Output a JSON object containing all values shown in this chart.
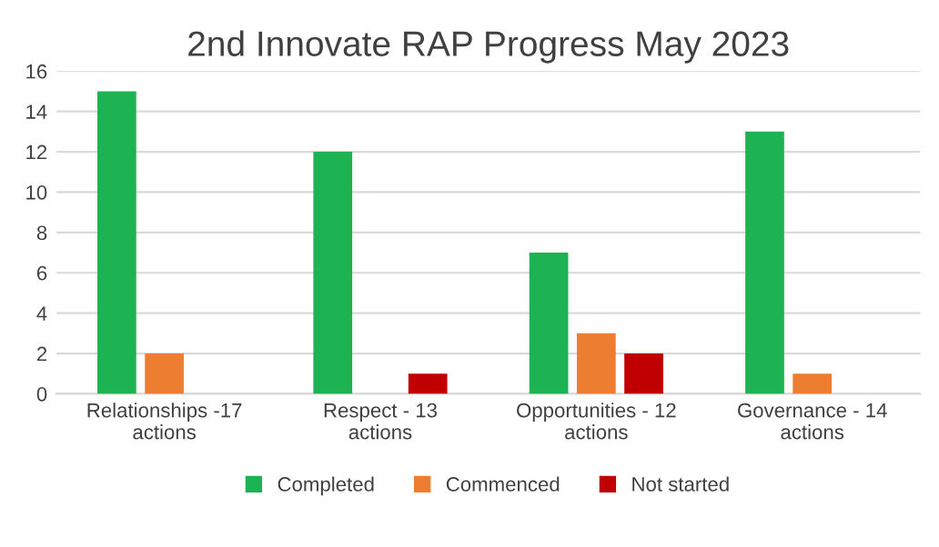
{
  "chart_data": {
    "type": "bar",
    "title": "2nd Innovate RAP Progress May 2023",
    "categories": [
      "Relationships -17 actions",
      "Respect - 13 actions",
      "Opportunities - 12 actions",
      "Governance - 14 actions"
    ],
    "series": [
      {
        "name": "Completed",
        "color": "#1db353",
        "values": [
          15,
          12,
          7,
          13
        ]
      },
      {
        "name": "Commenced",
        "color": "#ed7d31",
        "values": [
          2,
          0,
          3,
          1
        ]
      },
      {
        "name": "Not started",
        "color": "#c00000",
        "values": [
          0,
          1,
          2,
          0
        ]
      }
    ],
    "ylim": [
      0,
      16
    ],
    "yticks": [
      0,
      2,
      4,
      6,
      8,
      10,
      12,
      14,
      16
    ],
    "grid": "y",
    "legend": "bottom"
  }
}
